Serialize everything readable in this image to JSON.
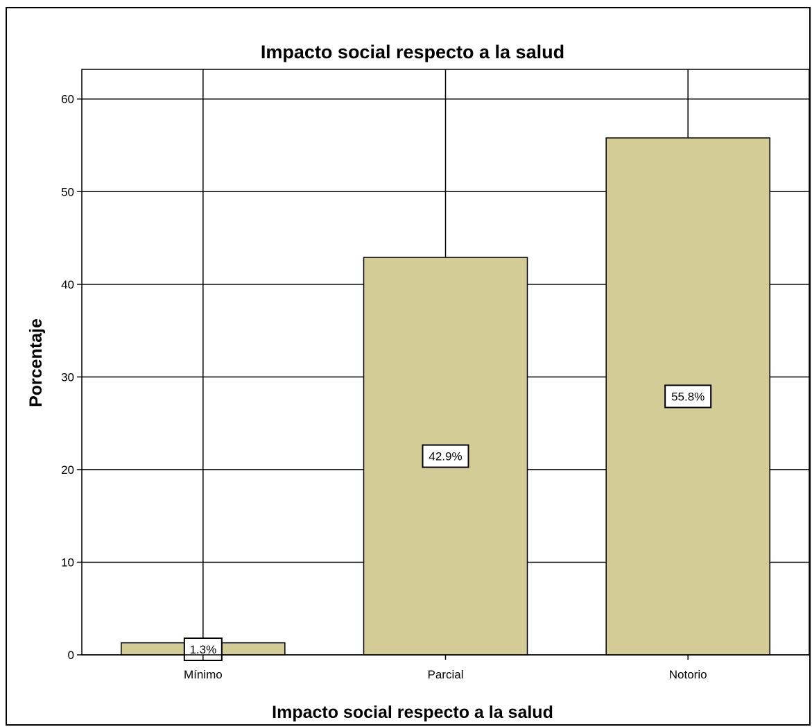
{
  "chart_data": {
    "type": "bar",
    "title": "Impacto social respecto a la salud",
    "xlabel": "Impacto social respecto a la salud",
    "ylabel": "Porcentaje",
    "categories": [
      "Mínimo",
      "Parcial",
      "Notorio"
    ],
    "values": [
      1.3,
      42.9,
      55.8
    ],
    "data_labels": [
      "1.3%",
      "42.9%",
      "55.8%"
    ],
    "yticks": [
      0,
      10,
      20,
      30,
      40,
      50,
      60
    ],
    "ylim": [
      0,
      63.2
    ],
    "grid": true,
    "bar_color": "#d3cc97"
  }
}
